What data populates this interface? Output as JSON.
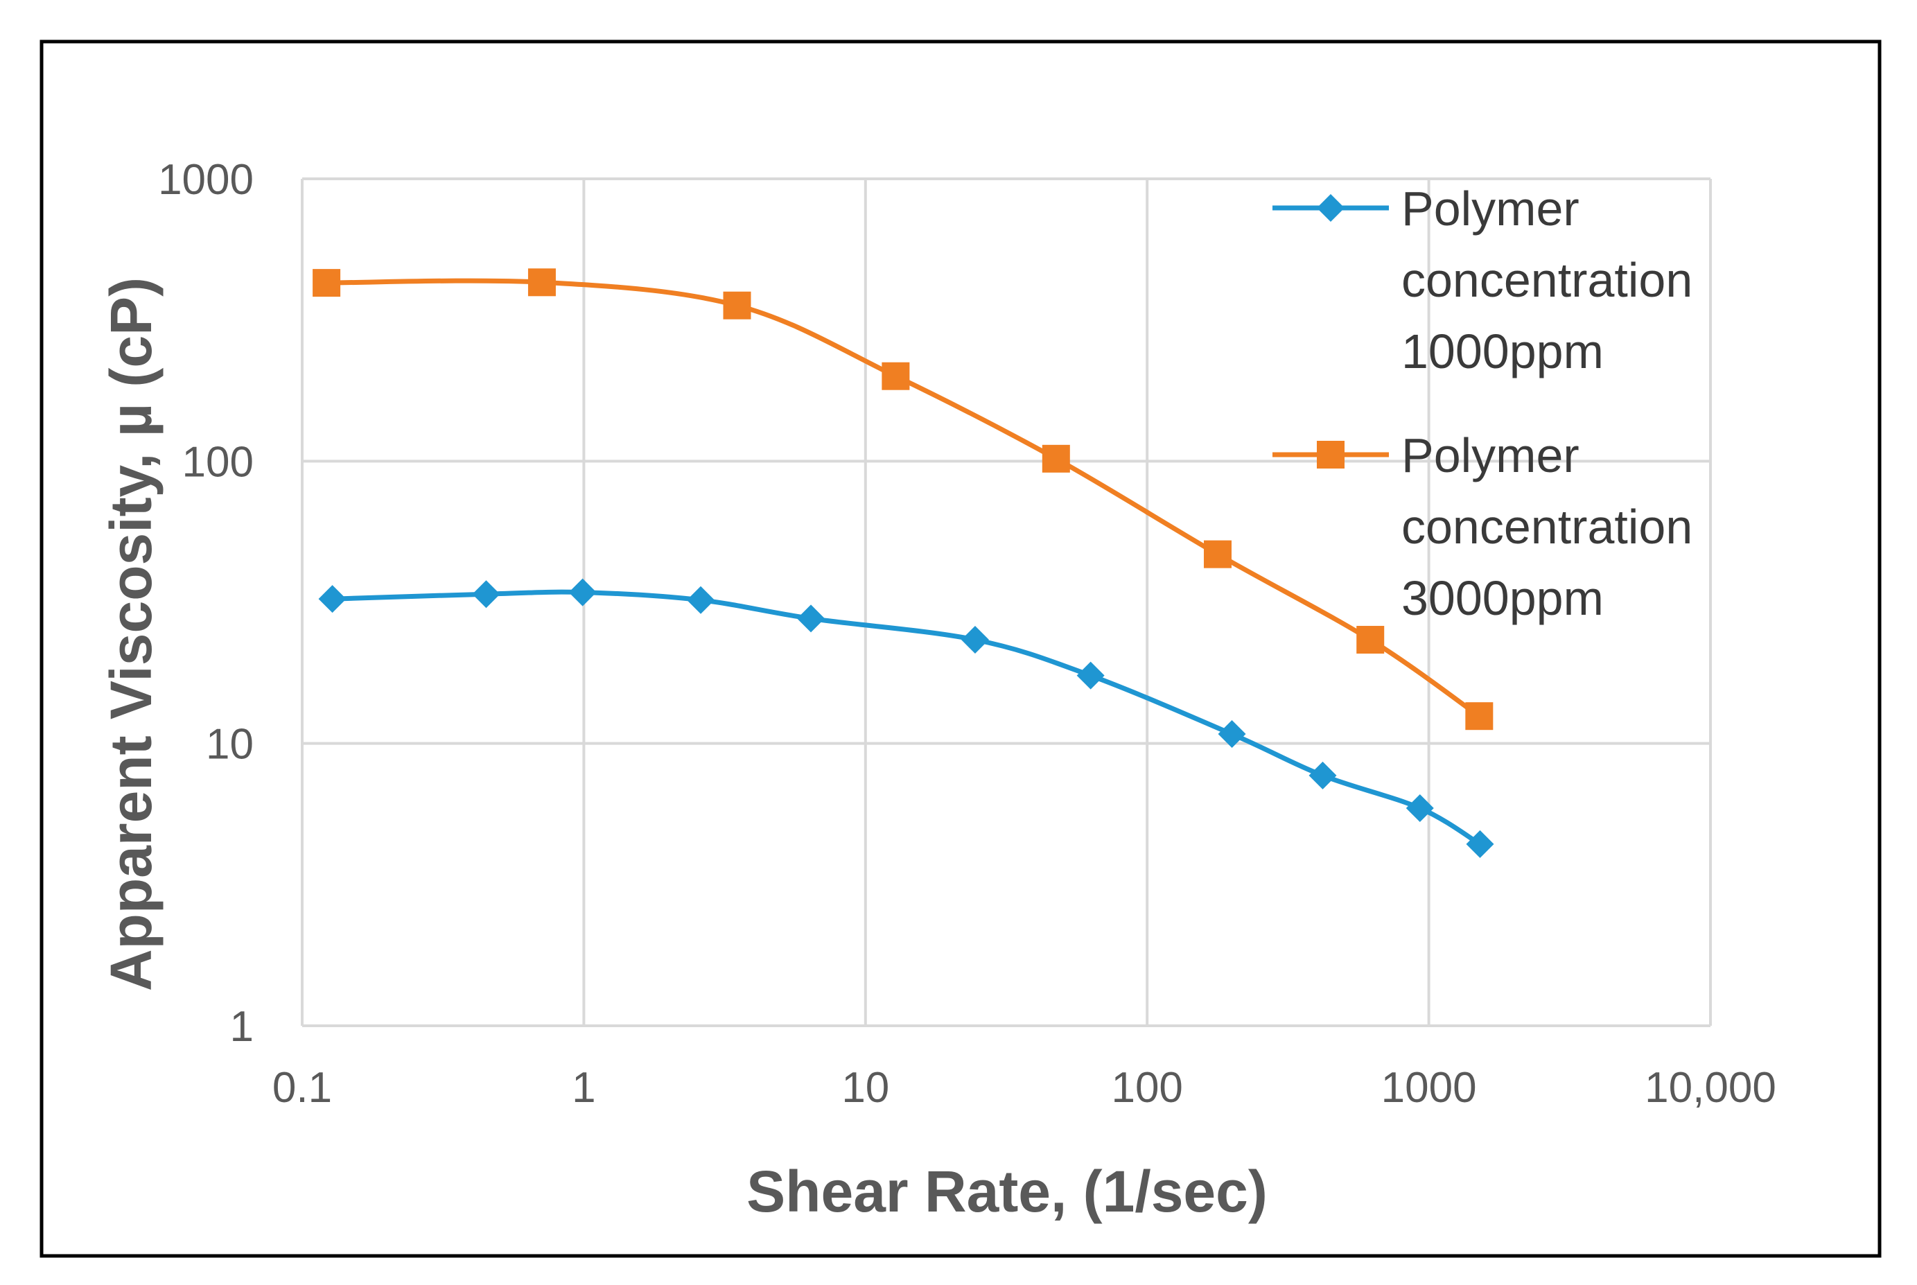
{
  "colors": {
    "series_blue": "#1f96d2",
    "series_orange": "#f07f22",
    "grid": "#d9d9d9",
    "frame": "#000000",
    "tick_text": "#595959"
  },
  "chart_data": {
    "type": "line",
    "title": "",
    "xlabel": "Shear Rate, (1/sec)",
    "ylabel": "Apparent Viscosity, µ  (cP)",
    "xscale": "log",
    "yscale": "log",
    "xlim": [
      0.1,
      10000
    ],
    "ylim": [
      1,
      1000
    ],
    "x_ticks": [
      0.1,
      1,
      10,
      100,
      1000,
      10000
    ],
    "x_tick_labels": [
      "0.1",
      "1",
      "10",
      "100",
      "1000",
      "10,000"
    ],
    "y_ticks": [
      1,
      10,
      100,
      1000
    ],
    "y_tick_labels": [
      "1",
      "10",
      "100",
      "1000"
    ],
    "grid": true,
    "legend_position": "top-right",
    "series": [
      {
        "name": "Polymer concentration 1000ppm",
        "legend_lines": [
          "Polymer",
          "concentration",
          "1000ppm"
        ],
        "color": "#1f96d2",
        "marker": "diamond",
        "x": [
          0.128,
          0.45,
          0.99,
          2.6,
          6.4,
          24.5,
          63,
          200,
          420,
          930,
          1520
        ],
        "y": [
          32.5,
          33.8,
          34.3,
          32.2,
          27.7,
          23.3,
          17.4,
          10.8,
          7.7,
          5.9,
          4.4
        ]
      },
      {
        "name": "Polymer concentration 3000ppm",
        "legend_lines": [
          "Polymer",
          "concentration",
          "3000ppm"
        ],
        "color": "#f07f22",
        "marker": "square",
        "x": [
          0.122,
          0.71,
          3.5,
          12.8,
          47.5,
          178,
          620,
          1510
        ],
        "y": [
          428,
          430,
          356,
          200,
          102,
          46.8,
          23.3,
          12.5
        ]
      }
    ]
  }
}
